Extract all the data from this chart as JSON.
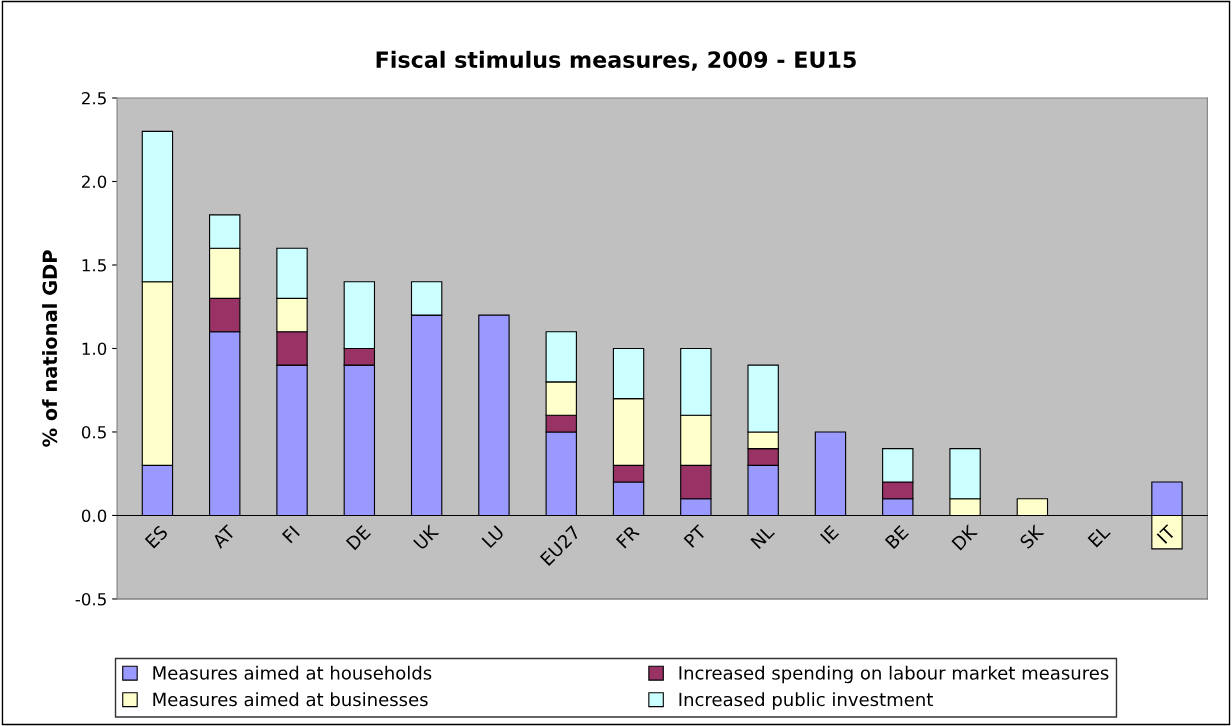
{
  "chart_data": {
    "type": "bar",
    "stacked": true,
    "title": "Fiscal stimulus measures, 2009 - EU15",
    "ylabel": "% of national GDP",
    "categories": [
      "ES",
      "AT",
      "FI",
      "DE",
      "UK",
      "LU",
      "EU27",
      "FR",
      "PT",
      "NL",
      "IE",
      "BE",
      "DK",
      "SK",
      "EL",
      "IT"
    ],
    "series": [
      {
        "name": "Measures aimed at households",
        "color": "#9999ff",
        "values": [
          0.3,
          1.1,
          0.9,
          0.9,
          1.2,
          1.2,
          0.5,
          0.2,
          0.1,
          0.3,
          0.5,
          0.1,
          0,
          0,
          0,
          0.2
        ]
      },
      {
        "name": "Increased spending on labour market measures",
        "color": "#993366",
        "values": [
          0,
          0.2,
          0.2,
          0.1,
          0,
          0,
          0.1,
          0.1,
          0.2,
          0.1,
          0,
          0.1,
          0,
          0,
          0,
          0
        ]
      },
      {
        "name": "Measures aimed at businesses",
        "color": "#ffffcc",
        "values": [
          1.1,
          0.3,
          0.2,
          0,
          0,
          0,
          0.2,
          0.4,
          0.3,
          0.1,
          0,
          0,
          0.1,
          0.1,
          0,
          -0.2
        ]
      },
      {
        "name": "Increased public investment",
        "color": "#ccffff",
        "values": [
          0.9,
          0.2,
          0.3,
          0.4,
          0.2,
          0,
          0.3,
          0.3,
          0.4,
          0.4,
          0,
          0.2,
          0.3,
          0,
          0,
          0
        ]
      }
    ],
    "ylim": [
      -0.5,
      2.5
    ],
    "yticks": [
      -0.5,
      {
        "value": 0,
        "label": "0.0"
      },
      0.5,
      {
        "value": 1,
        "label": "1.0"
      },
      1.5,
      {
        "value": 2,
        "label": "2.0"
      },
      2.5
    ],
    "grid": false,
    "legend": "bottom"
  }
}
